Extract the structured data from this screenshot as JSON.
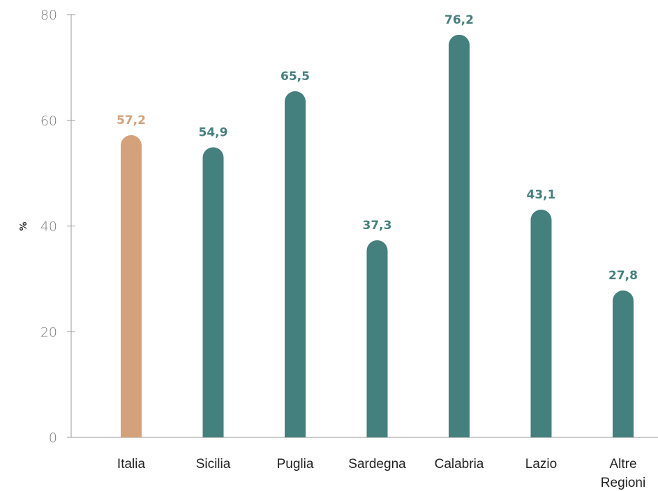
{
  "chart_data": {
    "type": "bar",
    "categories": [
      "Italia",
      "Sicilia",
      "Puglia",
      "Sardegna",
      "Calabria",
      "Lazio",
      "Altre Regioni"
    ],
    "category_lines": [
      [
        "Italia"
      ],
      [
        "Sicilia"
      ],
      [
        "Puglia"
      ],
      [
        "Sardegna"
      ],
      [
        "Calabria"
      ],
      [
        "Lazio"
      ],
      [
        "Altre",
        "Regioni"
      ]
    ],
    "values": [
      57.2,
      54.9,
      65.5,
      37.3,
      76.2,
      43.1,
      27.8
    ],
    "value_labels": [
      "57,2",
      "54,9",
      "65,5",
      "37,3",
      "76,2",
      "43,1",
      "27,8"
    ],
    "ylabel": "%",
    "ylim": [
      0,
      80
    ],
    "yticks": [
      0,
      20,
      40,
      60,
      80
    ],
    "ytick_labels": [
      "0",
      "20",
      "40",
      "60",
      "80"
    ],
    "grid": false,
    "colors": {
      "highlight": "#D4A27A",
      "default": "#44807D"
    },
    "highlight_index": 0
  }
}
